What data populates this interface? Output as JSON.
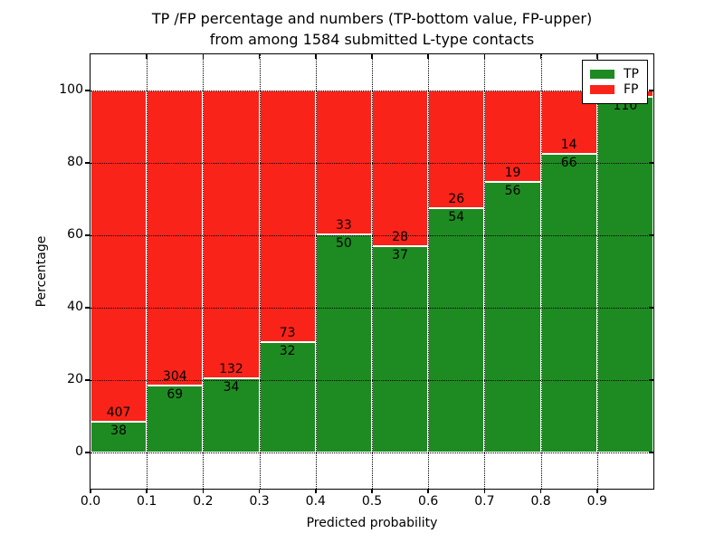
{
  "title": {
    "line1": "TP /FP percentage and numbers (TP-bottom value, FP-upper)",
    "line2": "from among 1584 submitted L-type contacts"
  },
  "axes": {
    "xlabel": "Predicted probability",
    "ylabel": "Percentage",
    "x_tick_labels": [
      "0.0",
      "0.1",
      "0.2",
      "0.3",
      "0.4",
      "0.5",
      "0.6",
      "0.7",
      "0.8",
      "0.9"
    ],
    "y_tick_labels": [
      "0",
      "20",
      "40",
      "60",
      "80",
      "100"
    ],
    "y_tick_values": [
      0,
      20,
      40,
      60,
      80,
      100
    ],
    "xlim": [
      0.0,
      1.0
    ],
    "ylim": [
      -10,
      110
    ],
    "grid_style": "dotted"
  },
  "legend": {
    "position": "upper right",
    "items": [
      {
        "label": "TP",
        "color": "#1e8b22"
      },
      {
        "label": "FP",
        "color": "#fa231a"
      }
    ]
  },
  "chart_data": {
    "type": "bar",
    "stacked": true,
    "title": "TP /FP percentage and numbers (TP-bottom value, FP-upper) from among 1584 submitted L-type contacts",
    "xlabel": "Predicted probability",
    "ylabel": "Percentage",
    "total_contacts": 1584,
    "xlim": [
      0.0,
      1.0
    ],
    "ylim": [
      -10,
      110
    ],
    "bin_width": 0.1,
    "bins": [
      "0.0-0.1",
      "0.1-0.2",
      "0.2-0.3",
      "0.3-0.4",
      "0.4-0.5",
      "0.5-0.6",
      "0.6-0.7",
      "0.7-0.8",
      "0.8-0.9",
      "0.9-1.0"
    ],
    "series": [
      {
        "name": "TP",
        "color": "#1e8b22",
        "counts": [
          38,
          69,
          34,
          32,
          50,
          37,
          54,
          56,
          66,
          110
        ],
        "pct": [
          8.54,
          18.5,
          20.48,
          30.48,
          60.24,
          56.92,
          67.5,
          74.67,
          82.5,
          98.21
        ]
      },
      {
        "name": "FP",
        "color": "#fa231a",
        "counts": [
          407,
          304,
          132,
          73,
          33,
          28,
          26,
          19,
          14,
          null
        ],
        "pct": [
          91.46,
          81.5,
          79.52,
          69.52,
          39.76,
          43.08,
          32.5,
          25.33,
          17.5,
          1.79
        ]
      }
    ],
    "bar_labels": {
      "tp": [
        "38",
        "69",
        "34",
        "32",
        "50",
        "37",
        "54",
        "56",
        "66",
        "110"
      ],
      "fp": [
        "407",
        "304",
        "132",
        "73",
        "33",
        "28",
        "26",
        "19",
        "14",
        ""
      ]
    }
  }
}
